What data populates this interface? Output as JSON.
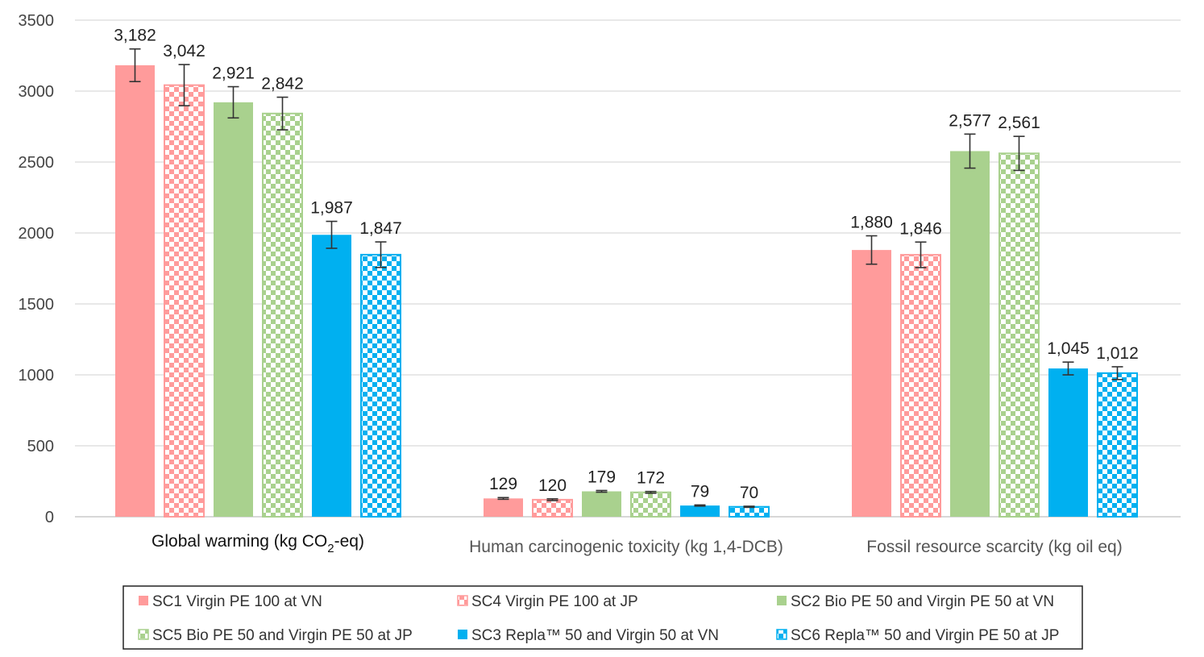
{
  "chart_data": {
    "type": "bar",
    "ylim": [
      0,
      3500
    ],
    "yticks": [
      0,
      500,
      1000,
      1500,
      2000,
      2500,
      3000,
      3500
    ],
    "grid": true,
    "legend_position": "bottom",
    "categories": [
      "Global warming (kg CO2-eq)",
      "Human carcinogenic toxicity (kg 1,4-DCB)",
      "Fossil resource scarcity (kg oil eq)"
    ],
    "category_label_parts": {
      "gw_main": "Global warming (kg CO",
      "gw_sub": "2",
      "gw_end": "-eq)"
    },
    "series": [
      {
        "name": "SC1 Virgin PE 100 at VN",
        "color": "#FF9B9B",
        "pattern": "solid",
        "values": [
          3182,
          129,
          1880
        ],
        "labels": [
          "3,182",
          "129",
          "1,880"
        ],
        "errors": [
          115,
          6,
          100
        ]
      },
      {
        "name": "SC4 Virgin PE 100 at JP",
        "color": "#FF9B9B",
        "pattern": "checker",
        "values": [
          3042,
          120,
          1846
        ],
        "labels": [
          "3,042",
          "120",
          "1,846"
        ],
        "errors": [
          145,
          6,
          90
        ]
      },
      {
        "name": "SC2 Bio PE 50 and Virgin PE 50 at VN",
        "color": "#A9D18E",
        "pattern": "solid",
        "values": [
          2921,
          179,
          2577
        ],
        "labels": [
          "2,921",
          "179",
          "2,577"
        ],
        "errors": [
          110,
          6,
          120
        ]
      },
      {
        "name": "SC5 Bio PE 50 and Virgin PE 50 at JP",
        "color": "#A9D18E",
        "pattern": "checker",
        "values": [
          2842,
          172,
          2561
        ],
        "labels": [
          "2,842",
          "172",
          "2,561"
        ],
        "errors": [
          115,
          6,
          120
        ]
      },
      {
        "name": "SC3 Repla™ 50 and Virgin 50 at VN",
        "color": "#00B0F0",
        "pattern": "solid",
        "values": [
          1987,
          79,
          1045
        ],
        "labels": [
          "1,987",
          "79",
          "1,045"
        ],
        "errors": [
          95,
          4,
          45
        ]
      },
      {
        "name": "SC6 Repla™ 50 and Virgin PE 50 at JP",
        "color": "#00B0F0",
        "pattern": "checker",
        "values": [
          1847,
          70,
          1012
        ],
        "labels": [
          "1,847",
          "70",
          "1,012"
        ],
        "errors": [
          90,
          4,
          45
        ]
      }
    ]
  }
}
